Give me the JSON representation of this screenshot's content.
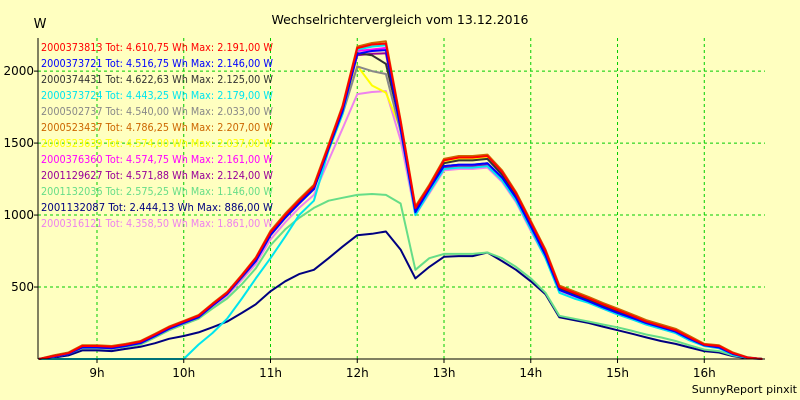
{
  "chart_data": {
    "type": "line",
    "title": "Wechselrichtervergleich vom 13.12.2016",
    "ylabel": "W",
    "xlabel": "",
    "footer": "SunnyReport pinxit",
    "xlim": [
      8.32,
      16.7
    ],
    "ylim": [
      0,
      2230
    ],
    "grid": true,
    "legend_position": "top-left",
    "x_ticks": [
      9,
      10,
      11,
      12,
      13,
      14,
      15,
      16
    ],
    "x_tick_labels": [
      "9h",
      "10h",
      "11h",
      "12h",
      "13h",
      "14h",
      "15h",
      "16h"
    ],
    "y_ticks": [
      500,
      1000,
      1500,
      2000
    ],
    "y_tick_labels": [
      "500",
      "1000",
      "1500",
      "2000"
    ],
    "colors": {
      "background": "#ffffc0",
      "plot_area": "#ffffc0",
      "grid": "#00cc00",
      "axis": "#000000"
    },
    "x": [
      8.33,
      8.5,
      8.67,
      8.83,
      9.0,
      9.17,
      9.33,
      9.5,
      9.67,
      9.83,
      10.0,
      10.17,
      10.33,
      10.5,
      10.67,
      10.83,
      11.0,
      11.17,
      11.33,
      11.5,
      11.67,
      11.83,
      12.0,
      12.17,
      12.33,
      12.5,
      12.67,
      12.83,
      13.0,
      13.17,
      13.33,
      13.5,
      13.67,
      13.83,
      14.0,
      14.17,
      14.33,
      14.5,
      14.67,
      14.83,
      15.0,
      15.17,
      15.33,
      15.5,
      15.67,
      15.83,
      16.0,
      16.17,
      16.33,
      16.5,
      16.67
    ],
    "series": [
      {
        "name": "2000373813 Tot: 4.610,75 Wh Max: 2.191,00 W",
        "color": "#ff0000",
        "values": [
          0,
          20,
          40,
          90,
          90,
          85,
          100,
          120,
          170,
          220,
          260,
          300,
          380,
          460,
          580,
          700,
          880,
          1000,
          1100,
          1200,
          1480,
          1750,
          2160,
          2185,
          2191,
          1650,
          1050,
          1200,
          1380,
          1400,
          1400,
          1410,
          1300,
          1150,
          950,
          750,
          500,
          460,
          420,
          380,
          340,
          300,
          260,
          230,
          200,
          150,
          100,
          90,
          40,
          10,
          0
        ]
      },
      {
        "name": "2000373721 Tot: 4.516,75 Wh Max: 2.146,00 W",
        "color": "#0000ff",
        "values": [
          0,
          15,
          35,
          80,
          80,
          75,
          90,
          110,
          160,
          210,
          250,
          290,
          370,
          450,
          570,
          680,
          860,
          980,
          1080,
          1180,
          1460,
          1720,
          2120,
          2140,
          2146,
          1600,
          1020,
          1180,
          1340,
          1350,
          1350,
          1360,
          1260,
          1120,
          920,
          720,
          480,
          440,
          400,
          360,
          320,
          285,
          250,
          220,
          190,
          140,
          95,
          80,
          35,
          10,
          0
        ]
      },
      {
        "name": "2000374431 Tot: 4.622,63 Wh Max: 2.125,00 W",
        "color": "#333333",
        "values": [
          0,
          20,
          40,
          85,
          85,
          80,
          95,
          115,
          165,
          215,
          255,
          295,
          375,
          455,
          575,
          690,
          870,
          990,
          1090,
          1190,
          1470,
          1730,
          2125,
          2110,
          2050,
          1630,
          1040,
          1190,
          1360,
          1380,
          1380,
          1390,
          1280,
          1140,
          940,
          740,
          490,
          450,
          410,
          370,
          330,
          295,
          255,
          225,
          195,
          145,
          98,
          85,
          38,
          10,
          0
        ]
      },
      {
        "name": "2000373724 Tot: 4.443,25 Wh Max: 2.179,00 W",
        "color": "#00e5ee",
        "values": [
          0,
          0,
          0,
          0,
          0,
          0,
          0,
          0,
          0,
          0,
          0,
          100,
          180,
          280,
          420,
          560,
          700,
          850,
          1000,
          1100,
          1450,
          1700,
          2150,
          2170,
          2179,
          1600,
          1000,
          1160,
          1320,
          1330,
          1330,
          1340,
          1240,
          1100,
          900,
          700,
          460,
          420,
          390,
          350,
          310,
          275,
          240,
          210,
          180,
          130,
          90,
          75,
          30,
          8,
          0
        ]
      },
      {
        "name": "2000502737 Tot: 4.540,00 Wh Max: 2.033,00 W",
        "color": "#888888",
        "values": [
          0,
          15,
          35,
          80,
          80,
          75,
          90,
          110,
          160,
          210,
          250,
          290,
          370,
          450,
          565,
          680,
          860,
          980,
          1080,
          1180,
          1450,
          1700,
          2033,
          2000,
          1980,
          1580,
          1030,
          1170,
          1340,
          1350,
          1350,
          1360,
          1260,
          1120,
          920,
          720,
          480,
          440,
          400,
          360,
          320,
          285,
          250,
          220,
          190,
          140,
          95,
          80,
          35,
          10,
          0
        ]
      },
      {
        "name": "2000523437 Tot: 4.786,25 Wh Max: 2.207,00 W",
        "color": "#cc6600",
        "values": [
          0,
          25,
          45,
          95,
          95,
          90,
          105,
          125,
          175,
          225,
          265,
          305,
          385,
          465,
          585,
          705,
          890,
          1010,
          1110,
          1210,
          1490,
          1760,
          2170,
          2195,
          2207,
          1660,
          1060,
          1210,
          1390,
          1410,
          1410,
          1420,
          1310,
          1160,
          960,
          760,
          510,
          470,
          430,
          390,
          350,
          310,
          270,
          240,
          210,
          160,
          105,
          95,
          45,
          12,
          0
        ]
      },
      {
        "name": "2000523639 Tot: 4.574,00 Wh Max: 2.037,00 W",
        "color": "#ffff00",
        "values": [
          0,
          20,
          40,
          85,
          85,
          80,
          95,
          115,
          165,
          215,
          255,
          295,
          375,
          455,
          575,
          690,
          870,
          990,
          1090,
          1190,
          1460,
          1720,
          2037,
          1900,
          1850,
          1600,
          1040,
          1190,
          1370,
          1390,
          1390,
          1400,
          1290,
          1150,
          950,
          750,
          500,
          460,
          420,
          380,
          340,
          300,
          260,
          230,
          200,
          150,
          100,
          90,
          40,
          10,
          0
        ]
      },
      {
        "name": "2000376360 Tot: 4.574,75 Wh Max: 2.161,00 W",
        "color": "#ff00ff",
        "values": [
          0,
          18,
          38,
          82,
          82,
          78,
          92,
          112,
          162,
          212,
          252,
          292,
          372,
          452,
          572,
          685,
          865,
          985,
          1085,
          1185,
          1465,
          1725,
          2140,
          2150,
          2161,
          1610,
          1030,
          1180,
          1340,
          1350,
          1350,
          1360,
          1260,
          1120,
          920,
          720,
          485,
          445,
          405,
          365,
          325,
          290,
          252,
          222,
          192,
          142,
          96,
          82,
          36,
          10,
          0
        ]
      },
      {
        "name": "2001129627 Tot: 4.571,88 Wh Max: 2.124,00 W",
        "color": "#990099",
        "values": [
          0,
          18,
          38,
          82,
          82,
          78,
          92,
          112,
          162,
          212,
          252,
          292,
          372,
          452,
          572,
          685,
          865,
          985,
          1085,
          1185,
          1465,
          1725,
          2110,
          2120,
          2124,
          1600,
          1030,
          1180,
          1330,
          1340,
          1340,
          1350,
          1250,
          1110,
          910,
          710,
          480,
          440,
          400,
          360,
          320,
          285,
          250,
          220,
          190,
          140,
          95,
          80,
          35,
          10,
          0
        ]
      },
      {
        "name": "2001132036 Tot: 2.575,25 Wh Max: 1.146,00 W",
        "color": "#66dd88",
        "values": [
          0,
          15,
          35,
          75,
          75,
          70,
          85,
          100,
          150,
          200,
          240,
          280,
          350,
          420,
          520,
          630,
          790,
          900,
          980,
          1050,
          1100,
          1120,
          1140,
          1146,
          1140,
          1080,
          620,
          700,
          730,
          730,
          730,
          740,
          700,
          640,
          560,
          460,
          300,
          280,
          260,
          240,
          220,
          195,
          170,
          150,
          125,
          95,
          65,
          55,
          25,
          8,
          0
        ]
      },
      {
        "name": "2001132087 Tot: 2.444,13 Wh Max: 886,00 W",
        "color": "#000080",
        "values": [
          0,
          10,
          25,
          60,
          60,
          55,
          70,
          85,
          110,
          140,
          160,
          185,
          220,
          260,
          320,
          380,
          470,
          540,
          590,
          620,
          700,
          780,
          860,
          870,
          886,
          760,
          560,
          640,
          710,
          715,
          715,
          740,
          680,
          620,
          540,
          450,
          290,
          270,
          250,
          225,
          200,
          175,
          150,
          125,
          105,
          80,
          55,
          45,
          20,
          5,
          0
        ]
      },
      {
        "name": "2000316121 Tot: 4.358,50 Wh Max: 1.861,00 W",
        "color": "#ee82ee",
        "values": [
          0,
          12,
          30,
          70,
          70,
          65,
          80,
          100,
          150,
          200,
          240,
          280,
          360,
          440,
          550,
          660,
          830,
          950,
          1050,
          1140,
          1380,
          1600,
          1840,
          1855,
          1861,
          1520,
          1000,
          1150,
          1310,
          1320,
          1320,
          1330,
          1230,
          1090,
          890,
          700,
          470,
          430,
          390,
          350,
          310,
          275,
          240,
          210,
          180,
          130,
          90,
          75,
          30,
          8,
          0
        ]
      }
    ]
  }
}
